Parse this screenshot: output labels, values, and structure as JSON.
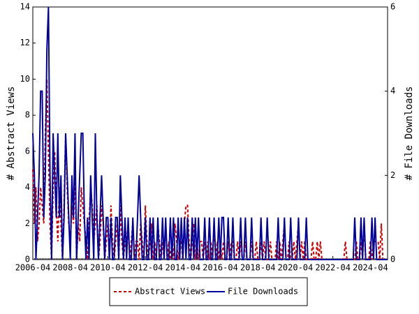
{
  "chart_data": {
    "type": "line",
    "x": [
      "2006-04",
      "2006-05",
      "2006-06",
      "2006-07",
      "2006-08",
      "2006-09",
      "2006-10",
      "2006-11",
      "2006-12",
      "2007-01",
      "2007-02",
      "2007-03",
      "2007-04",
      "2007-05",
      "2007-06",
      "2007-07",
      "2007-08",
      "2007-09",
      "2007-10",
      "2007-11",
      "2007-12",
      "2008-01",
      "2008-02",
      "2008-03",
      "2008-04",
      "2008-05",
      "2008-06",
      "2008-07",
      "2008-08",
      "2008-09",
      "2008-10",
      "2008-11",
      "2008-12",
      "2009-01",
      "2009-02",
      "2009-03",
      "2009-04",
      "2009-05",
      "2009-06",
      "2009-07",
      "2009-08",
      "2009-09",
      "2009-10",
      "2009-11",
      "2009-12",
      "2010-01",
      "2010-02",
      "2010-03",
      "2010-04",
      "2010-05",
      "2010-06",
      "2010-07",
      "2010-08",
      "2010-09",
      "2010-10",
      "2010-11",
      "2010-12",
      "2011-01",
      "2011-02",
      "2011-03",
      "2011-04",
      "2011-05",
      "2011-06",
      "2011-07",
      "2011-08",
      "2011-09",
      "2011-10",
      "2011-11",
      "2011-12",
      "2012-01",
      "2012-02",
      "2012-03",
      "2012-04",
      "2012-05",
      "2012-06",
      "2012-07",
      "2012-08",
      "2012-09",
      "2012-10",
      "2012-11",
      "2012-12",
      "2013-01",
      "2013-02",
      "2013-03",
      "2013-04",
      "2013-05",
      "2013-06",
      "2013-07",
      "2013-08",
      "2013-09",
      "2013-10",
      "2013-11",
      "2013-12",
      "2014-01",
      "2014-02",
      "2014-03",
      "2014-04",
      "2014-05",
      "2014-06",
      "2014-07",
      "2014-08",
      "2014-09",
      "2014-10",
      "2014-11",
      "2014-12",
      "2015-01",
      "2015-02",
      "2015-03",
      "2015-04",
      "2015-05",
      "2015-06",
      "2015-07",
      "2015-08",
      "2015-09",
      "2015-10",
      "2015-11",
      "2015-12",
      "2016-01",
      "2016-02",
      "2016-03",
      "2016-04",
      "2016-05",
      "2016-06",
      "2016-07",
      "2016-08",
      "2016-09",
      "2016-10",
      "2016-11",
      "2016-12",
      "2017-01",
      "2017-02",
      "2017-03",
      "2017-04",
      "2017-05",
      "2017-06",
      "2017-07",
      "2017-08",
      "2017-09",
      "2017-10",
      "2017-11",
      "2017-12",
      "2018-01",
      "2018-02",
      "2018-03",
      "2018-04",
      "2018-05",
      "2018-06",
      "2018-07",
      "2018-08",
      "2018-09",
      "2018-10",
      "2018-11",
      "2018-12",
      "2019-01",
      "2019-02",
      "2019-03",
      "2019-04",
      "2019-05",
      "2019-06",
      "2019-07",
      "2019-08",
      "2019-09",
      "2019-10",
      "2019-11",
      "2019-12",
      "2020-01",
      "2020-02",
      "2020-03",
      "2020-04",
      "2020-05",
      "2020-06",
      "2020-07",
      "2020-08",
      "2020-09",
      "2020-10",
      "2020-11",
      "2020-12",
      "2021-01",
      "2021-02",
      "2021-03",
      "2021-04",
      "2021-05",
      "2021-06",
      "2021-07",
      "2021-08",
      "2021-09",
      "2021-10",
      "2021-11",
      "2021-12",
      "2022-01",
      "2022-02",
      "2022-03",
      "2022-04",
      "2022-05",
      "2022-06",
      "2022-07",
      "2022-08",
      "2022-09",
      "2022-10",
      "2022-11",
      "2022-12",
      "2023-01",
      "2023-02",
      "2023-03",
      "2023-04",
      "2023-05",
      "2023-06",
      "2023-07",
      "2023-08",
      "2023-09",
      "2023-10",
      "2023-11",
      "2023-12",
      "2024-01",
      "2024-02",
      "2024-03",
      "2024-04",
      "2024-05",
      "2024-06",
      "2024-07",
      "2024-08",
      "2024-09",
      "2024-10",
      "2024-11",
      "2024-12",
      "2025-01",
      "2025-02",
      "2025-03"
    ],
    "series": [
      {
        "name": "Abstract Views",
        "color": "#cc0000",
        "dash": true,
        "values": [
          5,
          2,
          4,
          1,
          2,
          4,
          3,
          2,
          7,
          10,
          6,
          2,
          0,
          4,
          6,
          3,
          1,
          4,
          2,
          0,
          3,
          7,
          4,
          2,
          1,
          3,
          2,
          5,
          0,
          2,
          1,
          4,
          3,
          2,
          1,
          0,
          2,
          4,
          3,
          1,
          2,
          3,
          0,
          1,
          3,
          2,
          0,
          1,
          2,
          0,
          3,
          1,
          0,
          1,
          2,
          0,
          3,
          1,
          0,
          1,
          1,
          2,
          0,
          1,
          2,
          0,
          1,
          1,
          0,
          2,
          1,
          0,
          3,
          1,
          0,
          1,
          2,
          0,
          1,
          0,
          2,
          1,
          0,
          1,
          0,
          2,
          0,
          1,
          0,
          1,
          0,
          2,
          1,
          0,
          1,
          1,
          0,
          2,
          3,
          3,
          1,
          0,
          1,
          2,
          0,
          1,
          0,
          1,
          1,
          0,
          1,
          0,
          1,
          0,
          1,
          0,
          2,
          0,
          1,
          0,
          1,
          0,
          1,
          0,
          0,
          1,
          0,
          1,
          1,
          0,
          0,
          1,
          0,
          1,
          0,
          0,
          1,
          0,
          0,
          0,
          1,
          0,
          0,
          1,
          0,
          0,
          1,
          0,
          1,
          0,
          0,
          0,
          1,
          0,
          0,
          0,
          1,
          0,
          1,
          0,
          1,
          2,
          0,
          0,
          1,
          0,
          0,
          1,
          0,
          1,
          2,
          0,
          1,
          0,
          1,
          0,
          0,
          0,
          0,
          1,
          0,
          0,
          1,
          0,
          1,
          0,
          0,
          0,
          0,
          0,
          0,
          0,
          0,
          0,
          0,
          0,
          0,
          0,
          0,
          0,
          1,
          0,
          0,
          0,
          0,
          0,
          0,
          1,
          0,
          0,
          1,
          0,
          2,
          0,
          0,
          0,
          1,
          0,
          1,
          1,
          1,
          1,
          0,
          2,
          0,
          0,
          0,
          0
        ]
      },
      {
        "name": "File Downloads",
        "color": "#00009c",
        "axis": "y2",
        "values": [
          3,
          2,
          0,
          1,
          2,
          4,
          4,
          1,
          2,
          5,
          6,
          2,
          0,
          3,
          2,
          1,
          3,
          1,
          2,
          0,
          1,
          3,
          2,
          1,
          0,
          2,
          1,
          3,
          0,
          1,
          2,
          3,
          3,
          1,
          0,
          1,
          0,
          2,
          1,
          0,
          3,
          1,
          0,
          1,
          2,
          1,
          0,
          1,
          1,
          0,
          1,
          0,
          0,
          1,
          1,
          0,
          2,
          1,
          0,
          1,
          0,
          1,
          0,
          0,
          1,
          0,
          0,
          1,
          2,
          1,
          0,
          0,
          1,
          0,
          0,
          1,
          0,
          1,
          0,
          0,
          1,
          0,
          0,
          1,
          0,
          1,
          0,
          0,
          1,
          0,
          1,
          0,
          0,
          1,
          0,
          1,
          0,
          1,
          0,
          1,
          0,
          0,
          1,
          0,
          1,
          0,
          1,
          0,
          0,
          0,
          1,
          0,
          0,
          1,
          0,
          0,
          1,
          0,
          0,
          1,
          0,
          1,
          1,
          0,
          0,
          1,
          0,
          0,
          1,
          0,
          0,
          0,
          0,
          1,
          0,
          0,
          1,
          0,
          0,
          0,
          1,
          0,
          0,
          0,
          0,
          0,
          1,
          0,
          0,
          0,
          1,
          0,
          0,
          0,
          0,
          0,
          0,
          1,
          0,
          0,
          0,
          1,
          0,
          0,
          0,
          1,
          0,
          0,
          0,
          0,
          1,
          0,
          0,
          0,
          0,
          1,
          0,
          0,
          0,
          0,
          0,
          0,
          0,
          0,
          0,
          0,
          0,
          0,
          0,
          0,
          0,
          0,
          0,
          0,
          0,
          0,
          0,
          0,
          0,
          0,
          0,
          0,
          0,
          0,
          0,
          0,
          1,
          0,
          0,
          0,
          1,
          0,
          1,
          0,
          0,
          0,
          0,
          1,
          0,
          1,
          0,
          0,
          0,
          0,
          0,
          0,
          0,
          0
        ]
      }
    ],
    "ylabel": "# Abstract Views",
    "y2label": "# File Downloads",
    "ylim": [
      0,
      14
    ],
    "yticks": [
      0,
      2,
      4,
      6,
      8,
      10,
      12,
      14
    ],
    "y2lim": [
      0,
      6
    ],
    "y2ticks": [
      0,
      2,
      4,
      6
    ],
    "xticks": [
      "2006-04",
      "2008-04",
      "2010-04",
      "2012-04",
      "2014-04",
      "2016-04",
      "2018-04",
      "2020-04",
      "2022-04",
      "2024-04"
    ],
    "legend": "bottom"
  }
}
